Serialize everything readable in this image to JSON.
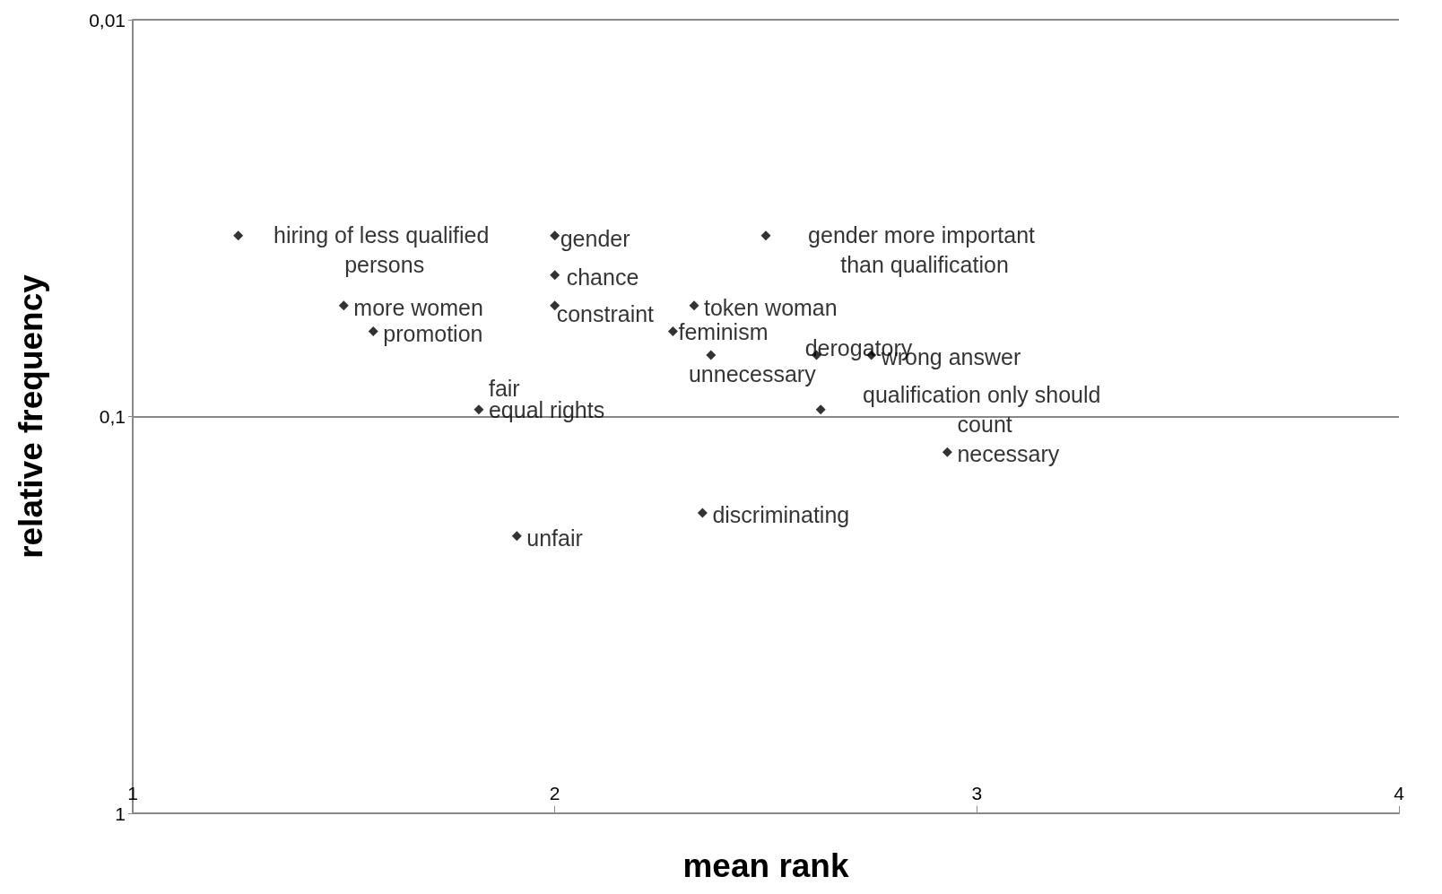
{
  "chart_data": {
    "type": "scatter",
    "xlabel": "mean rank",
    "ylabel": "relative frequency",
    "x": [
      1.25,
      1.5,
      1.57,
      1.82,
      1.91,
      2.0,
      2.0,
      2.0,
      2.33,
      2.28,
      2.37,
      2.62,
      2.75,
      2.5,
      2.63,
      2.93,
      2.35
    ],
    "values": [
      0.035,
      0.0525,
      0.061,
      0.096,
      0.2,
      0.035,
      0.044,
      0.0525,
      0.0525,
      0.061,
      0.07,
      0.07,
      0.07,
      0.035,
      0.096,
      0.123,
      0.175
    ],
    "color": "#000000",
    "marker": "diamond",
    "annotations": [
      {
        "text": "hiring of less qualified persons",
        "x": 1.25,
        "y": 0.035
      },
      {
        "text": "more women",
        "x": 1.5,
        "y": 0.0525
      },
      {
        "text": "promotion",
        "x": 1.57,
        "y": 0.061
      },
      {
        "text": "fair",
        "x": 1.82,
        "y": 0.096
      },
      {
        "text": "equal rights",
        "x": 1.82,
        "y": 0.096
      },
      {
        "text": "unfair",
        "x": 1.91,
        "y": 0.2
      },
      {
        "text": "gender",
        "x": 2.0,
        "y": 0.035
      },
      {
        "text": "chance",
        "x": 2.0,
        "y": 0.044
      },
      {
        "text": "constraint",
        "x": 2.0,
        "y": 0.0525
      },
      {
        "text": "token woman",
        "x": 2.33,
        "y": 0.0525
      },
      {
        "text": "feminism",
        "x": 2.28,
        "y": 0.061
      },
      {
        "text": "unnecessary",
        "x": 2.37,
        "y": 0.07
      },
      {
        "text": "derogatory",
        "x": 2.62,
        "y": 0.07
      },
      {
        "text": "wrong answer",
        "x": 2.75,
        "y": 0.07
      },
      {
        "text": "gender more important than qualification",
        "x": 2.5,
        "y": 0.035
      },
      {
        "text": "qualification only should count",
        "x": 2.63,
        "y": 0.096
      },
      {
        "text": "necessary",
        "x": 2.93,
        "y": 0.123
      },
      {
        "text": "discriminating",
        "x": 2.35,
        "y": 0.175
      }
    ],
    "xlim": [
      1,
      4
    ],
    "xticks": [
      1,
      2,
      3,
      4
    ],
    "ylim": [
      1,
      0.01
    ],
    "yticks": [
      {
        "value": 0.01,
        "label": "0,01"
      },
      {
        "value": 0.1,
        "label": "0,1"
      },
      {
        "value": 1,
        "label": "1"
      }
    ],
    "log": "y",
    "grid": "y"
  }
}
